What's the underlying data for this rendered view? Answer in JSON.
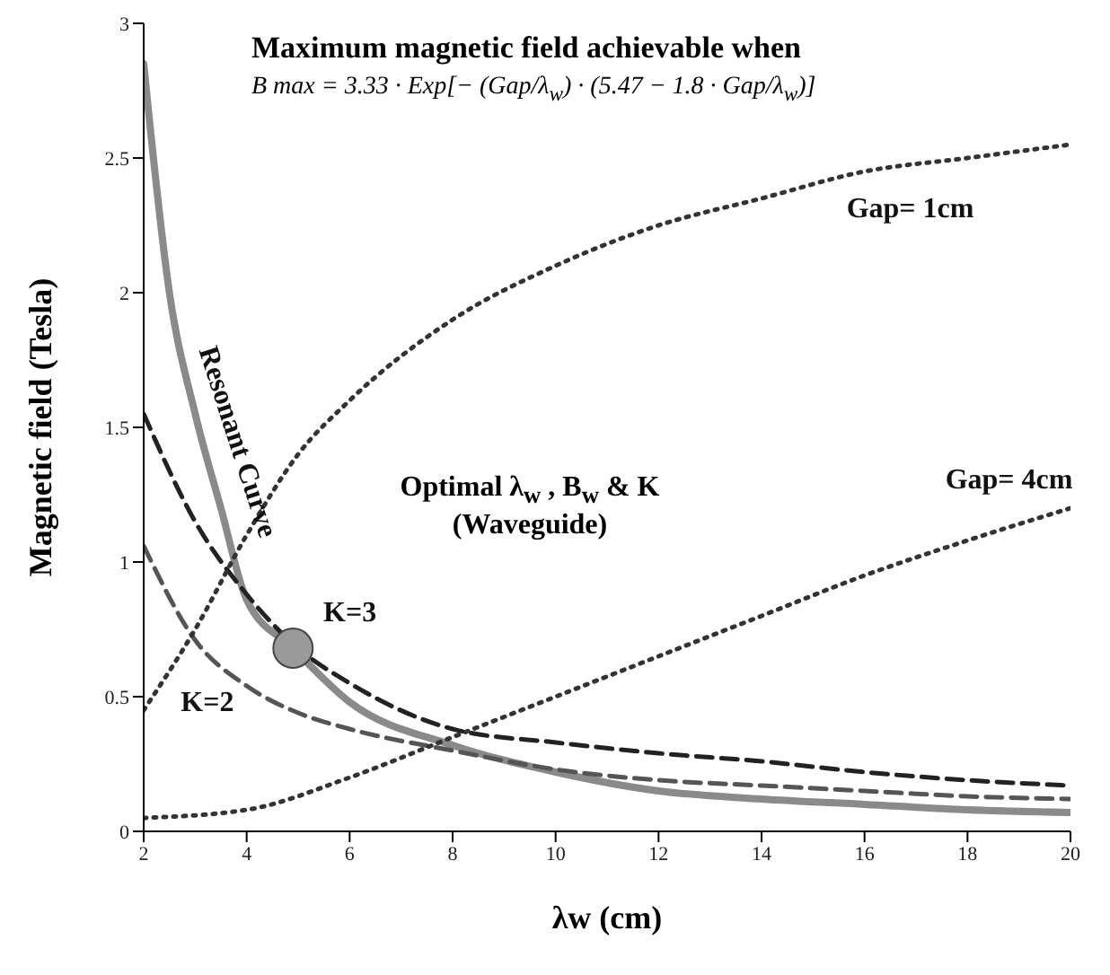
{
  "chart_data": {
    "type": "line",
    "title": "Maximum magnetic field achievable when",
    "subtitle": "B max = 3.33 · Exp[− (Gap/λ$_{w}$) · (5.47 − 1.8 · Gap/λ$_{w}$)]",
    "xlabel": "λw   (cm)",
    "ylabel": "Magnetic field (Tesla)",
    "xlim": [
      2,
      20
    ],
    "xticks": [
      2,
      4,
      6,
      8,
      10,
      12,
      14,
      16,
      18,
      20
    ],
    "ylim": [
      0,
      3
    ],
    "yticks": [
      0,
      0.5,
      1,
      1.5,
      2,
      2.5,
      3
    ],
    "grid": false,
    "legend": false,
    "annotations": [
      "Optimal λ$_{w}$ , B$_{w}$ & K (Waveguide)"
    ],
    "series": [
      {
        "name": "Resonant Curve",
        "color": "#8a8a8a",
        "line_style": "solid",
        "x": [
          2,
          2.5,
          3,
          3.5,
          4,
          4.9,
          6,
          8,
          10,
          12,
          14,
          16,
          18,
          20
        ],
        "values": [
          2.85,
          2.0,
          1.55,
          1.2,
          0.86,
          0.68,
          0.48,
          0.32,
          0.22,
          0.15,
          0.12,
          0.1,
          0.08,
          0.07
        ]
      },
      {
        "name": "K=3",
        "color": "#222222",
        "line_style": "dashed",
        "x": [
          2,
          3,
          4,
          5,
          6,
          8,
          10,
          12,
          14,
          16,
          18,
          20
        ],
        "values": [
          1.55,
          1.15,
          0.88,
          0.68,
          0.55,
          0.38,
          0.33,
          0.29,
          0.26,
          0.22,
          0.19,
          0.17
        ]
      },
      {
        "name": "K=2",
        "color": "#555555",
        "line_style": "dashed",
        "x": [
          2,
          3,
          4,
          5,
          6,
          8,
          10,
          12,
          14,
          16,
          18,
          20
        ],
        "values": [
          1.06,
          0.71,
          0.54,
          0.44,
          0.38,
          0.3,
          0.23,
          0.19,
          0.17,
          0.15,
          0.13,
          0.12
        ]
      },
      {
        "name": "Gap= 1cm",
        "color": "#333333",
        "line_style": "dotted",
        "x": [
          2,
          3,
          4,
          5,
          6,
          8,
          10,
          12,
          14,
          16,
          18,
          20
        ],
        "values": [
          0.45,
          0.75,
          1.1,
          1.4,
          1.6,
          1.9,
          2.1,
          2.25,
          2.35,
          2.45,
          2.5,
          2.55
        ]
      },
      {
        "name": "Gap= 4cm",
        "color": "#333333",
        "line_style": "dotted",
        "x": [
          2,
          4,
          6,
          8,
          10,
          12,
          14,
          16,
          18,
          20
        ],
        "values": [
          0.05,
          0.08,
          0.2,
          0.35,
          0.5,
          0.65,
          0.8,
          0.95,
          1.08,
          1.2
        ]
      },
      {
        "type": "scatter",
        "color": "#9a9a9a",
        "x": [
          4.9
        ],
        "values": [
          0.68
        ]
      }
    ]
  }
}
